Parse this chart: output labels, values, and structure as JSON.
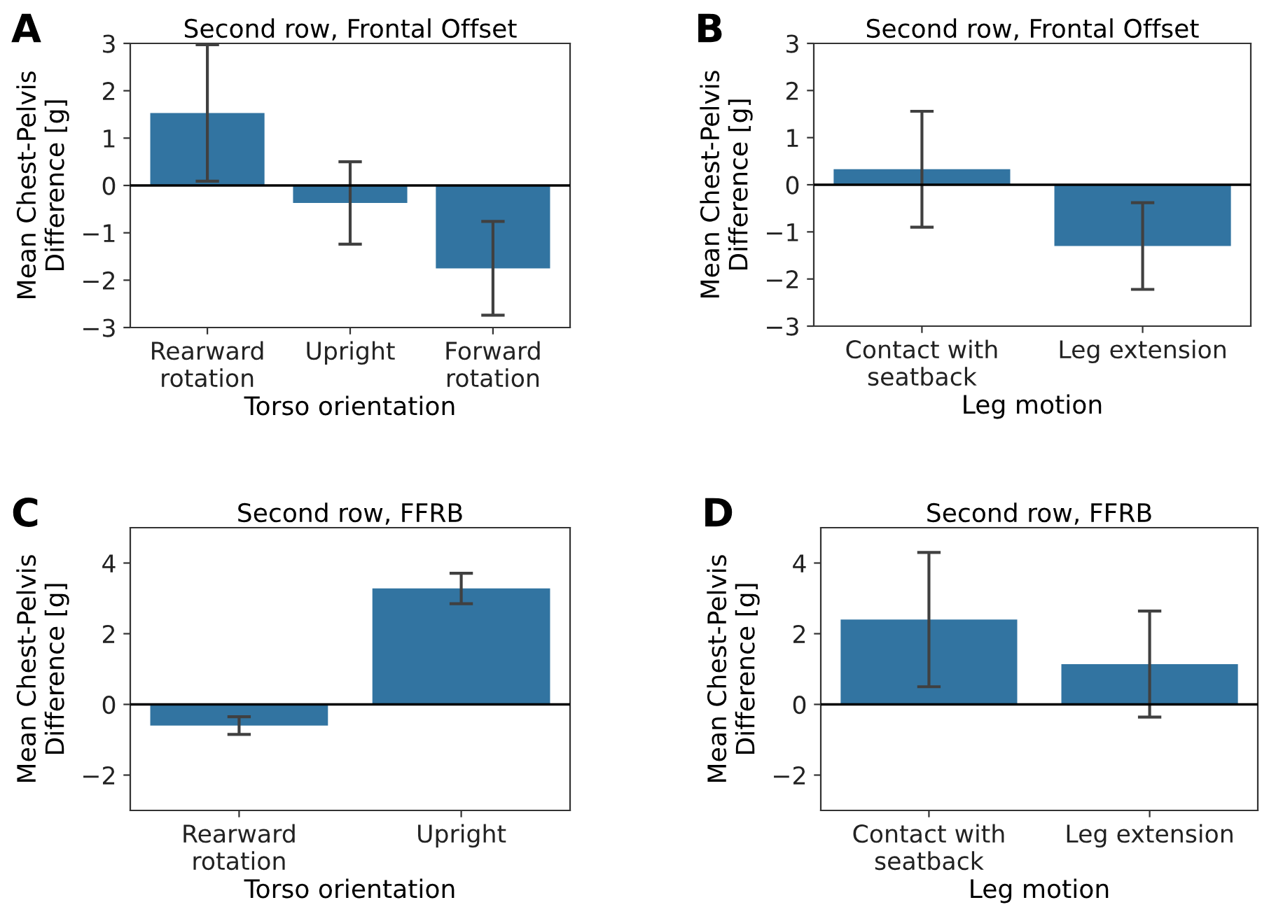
{
  "chart_data": [
    {
      "type": "bar",
      "title": "Second row, Frontal Offset",
      "xlabel": "Torso orientation",
      "ylabel": "Mean Chest-Pelvis\nDifference [g]",
      "annotations": [
        "A"
      ],
      "categories": [
        "Rearward\nrotation",
        "Upright",
        "Forward\nrotation"
      ],
      "values": [
        1.53,
        -0.37,
        -1.75
      ],
      "errors": [
        1.44,
        0.87,
        0.99
      ],
      "color": "#3274a1",
      "ylim": [
        -3,
        3
      ],
      "yticks": [
        -3,
        -2,
        -1,
        0,
        1,
        2,
        3
      ],
      "ref_lines": [
        {
          "axis": "y",
          "value": 0,
          "color": "#000000"
        }
      ],
      "grid": false
    },
    {
      "type": "bar",
      "title": "Second row, Frontal Offset",
      "xlabel": "Leg motion",
      "ylabel": "Mean Chest-Pelvis\nDifference [g]",
      "annotations": [
        "B"
      ],
      "categories": [
        "Contact with\nseatback",
        "Leg extension"
      ],
      "values": [
        0.33,
        -1.3
      ],
      "errors": [
        1.23,
        0.92
      ],
      "color": "#3274a1",
      "ylim": [
        -3,
        3
      ],
      "yticks": [
        -3,
        -2,
        -1,
        0,
        1,
        2,
        3
      ],
      "ref_lines": [
        {
          "axis": "y",
          "value": 0,
          "color": "#000000"
        }
      ],
      "grid": false
    },
    {
      "type": "bar",
      "title": "Second row, FFRB",
      "xlabel": "Torso orientation",
      "ylabel": "Mean Chest-Pelvis\nDifference [g]",
      "annotations": [
        "C"
      ],
      "categories": [
        "Rearward\nrotation",
        "Upright"
      ],
      "values": [
        -0.6,
        3.28
      ],
      "errors": [
        0.25,
        0.43
      ],
      "color": "#3274a1",
      "ylim": [
        -3,
        5
      ],
      "yticks": [
        -2,
        0,
        2,
        4
      ],
      "ref_lines": [
        {
          "axis": "y",
          "value": 0,
          "color": "#000000"
        }
      ],
      "grid": false
    },
    {
      "type": "bar",
      "title": "Second row, FFRB",
      "xlabel": "Leg motion",
      "ylabel": "Mean Chest-Pelvis\nDifference [g]",
      "annotations": [
        "D"
      ],
      "categories": [
        "Contact with\nseatback",
        "Leg extension"
      ],
      "values": [
        2.4,
        1.14
      ],
      "errors": [
        1.9,
        1.5
      ],
      "color": "#3274a1",
      "ylim": [
        -3,
        5
      ],
      "yticks": [
        -2,
        0,
        2,
        4
      ],
      "ref_lines": [
        {
          "axis": "y",
          "value": 0,
          "color": "#000000"
        }
      ],
      "grid": false
    }
  ]
}
